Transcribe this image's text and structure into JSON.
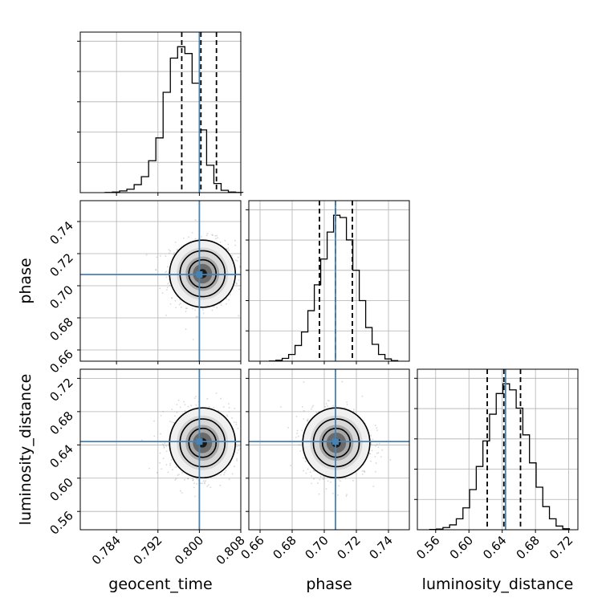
{
  "chart_data": {
    "type": "corner",
    "parameters": [
      "geocent_time",
      "phase",
      "luminosity_distance"
    ],
    "truths": {
      "geocent_time": 0.8,
      "phase": 0.707,
      "luminosity_distance": 0.644
    },
    "colors": {
      "truth": "#4682b4",
      "hist": "#000000",
      "grid": "#b0b0b0",
      "points": "#8c8c8c"
    },
    "grid": true,
    "panels": [
      {
        "kind": "hist1d",
        "param": "geocent_time",
        "row": 0,
        "col": 0,
        "xlim": [
          0.777,
          0.808
        ],
        "xticks": [
          0.784,
          0.792,
          0.8,
          0.808
        ],
        "tick_labels_y": false,
        "bin_edges": [
          0.7818,
          0.7832,
          0.7846,
          0.786,
          0.7874,
          0.7888,
          0.7902,
          0.7916,
          0.793,
          0.7944,
          0.7958,
          0.7972,
          0.7986,
          0.8,
          0.8014,
          0.8028,
          0.8042,
          0.8056,
          0.807,
          0.8084
        ],
        "counts": [
          0.2,
          0.5,
          1.5,
          3,
          7,
          14,
          28,
          48,
          88,
          118,
          128,
          122,
          96,
          55,
          24,
          8,
          2,
          0.5,
          0.2
        ],
        "quantiles": [
          0.7966,
          0.8003,
          0.8033
        ]
      },
      {
        "kind": "hist1d",
        "param": "phase",
        "row": 1,
        "col": 1,
        "xlim": [
          0.653,
          0.753
        ],
        "xticks": [
          0.66,
          0.68,
          0.7,
          0.72,
          0.74
        ],
        "tick_labels_y": false,
        "bin_edges": [
          0.6658,
          0.6698,
          0.6738,
          0.6778,
          0.6818,
          0.6858,
          0.6898,
          0.6938,
          0.6978,
          0.7018,
          0.7058,
          0.7098,
          0.7138,
          0.7178,
          0.7218,
          0.7258,
          0.7298,
          0.7338,
          0.7378,
          0.7418,
          0.7458
        ],
        "counts": [
          0.2,
          0.8,
          2.5,
          6,
          14,
          26,
          45,
          68,
          91,
          115,
          130,
          128,
          108,
          81,
          54,
          30,
          15,
          6,
          2,
          0.5
        ],
        "quantiles": [
          0.697,
          0.707,
          0.7175
        ]
      },
      {
        "kind": "hist1d",
        "param": "luminosity_distance",
        "row": 2,
        "col": 2,
        "xlim": [
          0.538,
          0.731
        ],
        "xticks": [
          0.56,
          0.6,
          0.64,
          0.68,
          0.72
        ],
        "tick_labels_y": false,
        "bin_edges": [
          0.5528,
          0.5608,
          0.5688,
          0.5768,
          0.5848,
          0.5928,
          0.6008,
          0.6088,
          0.6168,
          0.6248,
          0.6328,
          0.6408,
          0.6488,
          0.6568,
          0.6648,
          0.6728,
          0.6808,
          0.6888,
          0.6968,
          0.7048,
          0.7128,
          0.7208
        ],
        "counts": [
          0.2,
          0.6,
          1.8,
          4,
          9,
          18,
          33,
          52,
          73,
          95,
          112,
          120,
          115,
          100,
          78,
          55,
          35,
          19,
          9,
          3,
          0.8
        ],
        "quantiles": [
          0.622,
          0.642,
          0.662
        ]
      },
      {
        "kind": "hist2d",
        "xparam": "geocent_time",
        "yparam": "phase",
        "row": 1,
        "col": 0,
        "xlim": [
          0.777,
          0.808
        ],
        "ylim": [
          0.653,
          0.753
        ],
        "xticks": [
          0.784,
          0.792,
          0.8,
          0.808
        ],
        "yticks": [
          0.66,
          0.68,
          0.7,
          0.72,
          0.74
        ],
        "center": [
          0.8006,
          0.7075
        ],
        "sigma": [
          0.0031,
          0.0102
        ]
      },
      {
        "kind": "hist2d",
        "xparam": "geocent_time",
        "yparam": "luminosity_distance",
        "row": 2,
        "col": 0,
        "xlim": [
          0.777,
          0.808
        ],
        "ylim": [
          0.538,
          0.731
        ],
        "xticks": [
          0.784,
          0.792,
          0.8,
          0.808
        ],
        "yticks": [
          0.56,
          0.6,
          0.64,
          0.68,
          0.72
        ],
        "center": [
          0.8006,
          0.6425
        ],
        "sigma": [
          0.0031,
          0.0205
        ]
      },
      {
        "kind": "hist2d",
        "xparam": "phase",
        "yparam": "luminosity_distance",
        "row": 2,
        "col": 1,
        "xlim": [
          0.653,
          0.753
        ],
        "ylim": [
          0.538,
          0.731
        ],
        "xticks": [
          0.66,
          0.68,
          0.7,
          0.72,
          0.74
        ],
        "yticks": [
          0.56,
          0.6,
          0.64,
          0.68,
          0.72
        ],
        "center": [
          0.7075,
          0.6425
        ],
        "sigma": [
          0.0102,
          0.0205
        ]
      }
    ],
    "tick_labels": {
      "geocent_time": [
        "0.784",
        "0.792",
        "0.800",
        "0.808"
      ],
      "phase": [
        "0.66",
        "0.68",
        "0.70",
        "0.72",
        "0.74"
      ],
      "luminosity_distance": [
        "0.56",
        "0.60",
        "0.64",
        "0.68",
        "0.72"
      ]
    },
    "axis_labels": {
      "x": [
        "geocent_time",
        "phase",
        "luminosity_distance"
      ],
      "y": [
        "phase",
        "luminosity_distance"
      ]
    }
  }
}
